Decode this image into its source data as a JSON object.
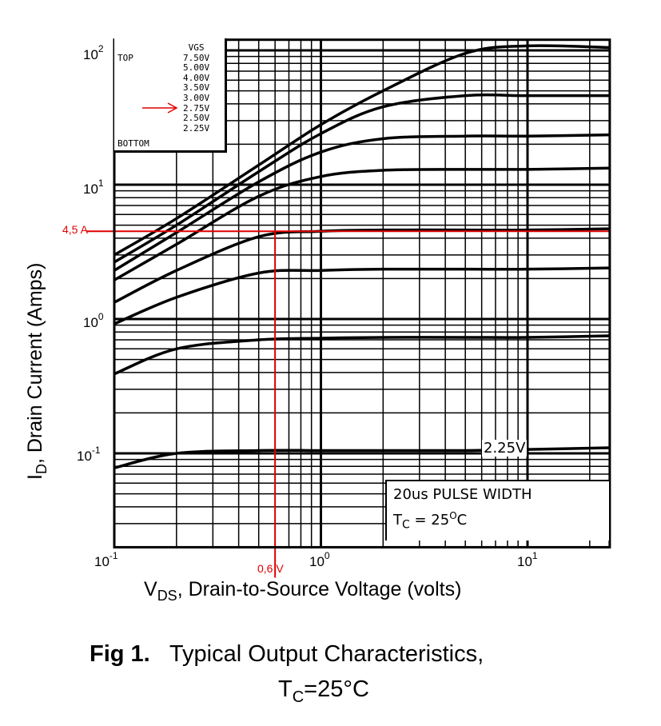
{
  "chart_data": {
    "type": "line",
    "title": "Fig 1.   Typical Output Characteristics,",
    "subtitle": "TC=25°C",
    "xlabel": {
      "main": "V",
      "sub": "DS",
      "rest": ", Drain-to-Source Voltage (volts)"
    },
    "ylabel": {
      "main": "I",
      "sub": "D",
      "rest": ", Drain Current (Amps)"
    },
    "xscale": "log",
    "yscale": "log",
    "xlim": [
      0.1,
      25
    ],
    "ylim": [
      0.02,
      120
    ],
    "grid": true,
    "x_ticks": [
      {
        "base": "10",
        "exp": "-1",
        "value": 0.1
      },
      {
        "base": "10",
        "exp": "0",
        "value": 1
      },
      {
        "base": "10",
        "exp": "1",
        "value": 10
      }
    ],
    "y_ticks": [
      {
        "base": "10",
        "exp": "2",
        "value": 100
      },
      {
        "base": "10",
        "exp": "1",
        "value": 10
      },
      {
        "base": "10",
        "exp": "0",
        "value": 1
      },
      {
        "base": "10",
        "exp": "-1",
        "value": 0.1
      }
    ],
    "x": [
      0.1,
      0.2,
      0.5,
      1,
      2,
      5,
      10,
      25
    ],
    "series": [
      {
        "name": "7.50V",
        "values": [
          3.0,
          5.6,
          14,
          28,
          50,
          95,
          108,
          105
        ]
      },
      {
        "name": "5.00V",
        "values": [
          2.65,
          5.0,
          12.5,
          24,
          38,
          46,
          46,
          46
        ]
      },
      {
        "name": "4.00V",
        "values": [
          2.3,
          4.4,
          10.5,
          17.5,
          22,
          23,
          23,
          23.5
        ]
      },
      {
        "name": "3.50V",
        "values": [
          1.95,
          3.6,
          8.2,
          11.5,
          12.8,
          13,
          13,
          13.3
        ]
      },
      {
        "name": "3.00V",
        "values": [
          1.33,
          2.3,
          4.1,
          4.5,
          4.6,
          4.6,
          4.6,
          4.7
        ]
      },
      {
        "name": "2.75V",
        "values": [
          0.92,
          1.45,
          2.2,
          2.3,
          2.35,
          2.35,
          2.35,
          2.4
        ]
      },
      {
        "name": "2.50V",
        "values": [
          0.39,
          0.6,
          0.7,
          0.72,
          0.73,
          0.73,
          0.73,
          0.75
        ]
      },
      {
        "name": "2.25V",
        "values": [
          0.078,
          0.1,
          0.105,
          0.105,
          0.105,
          0.105,
          0.107,
          0.11
        ]
      }
    ],
    "legend": {
      "header": "VGS",
      "top_label": "TOP",
      "bottom_label": "BOTTOM",
      "entries": [
        "7.50V",
        "5.00V",
        "4.00V",
        "3.50V",
        "3.00V",
        "2.75V",
        "2.50V",
        "2.25V"
      ],
      "placement": "top-left"
    },
    "annotations": {
      "curve_label": "2.25V",
      "pulse": "20us PULSE WIDTH",
      "tc_main": "T",
      "tc_sub": "C",
      "tc_rest": " = 25",
      "tc_deg": "O",
      "tc_unit": "C",
      "marker_current_label": "4,5 A",
      "marker_current_value": 4.5,
      "marker_voltage_label": "0,6 V",
      "marker_voltage_value": 0.6,
      "marker_color": "#e00000"
    },
    "caption": {
      "fig": "Fig 1.",
      "text": "Typical Output Characteristics,",
      "line2_main": "T",
      "line2_sub": "C",
      "line2_rest": "=25°C"
    }
  }
}
